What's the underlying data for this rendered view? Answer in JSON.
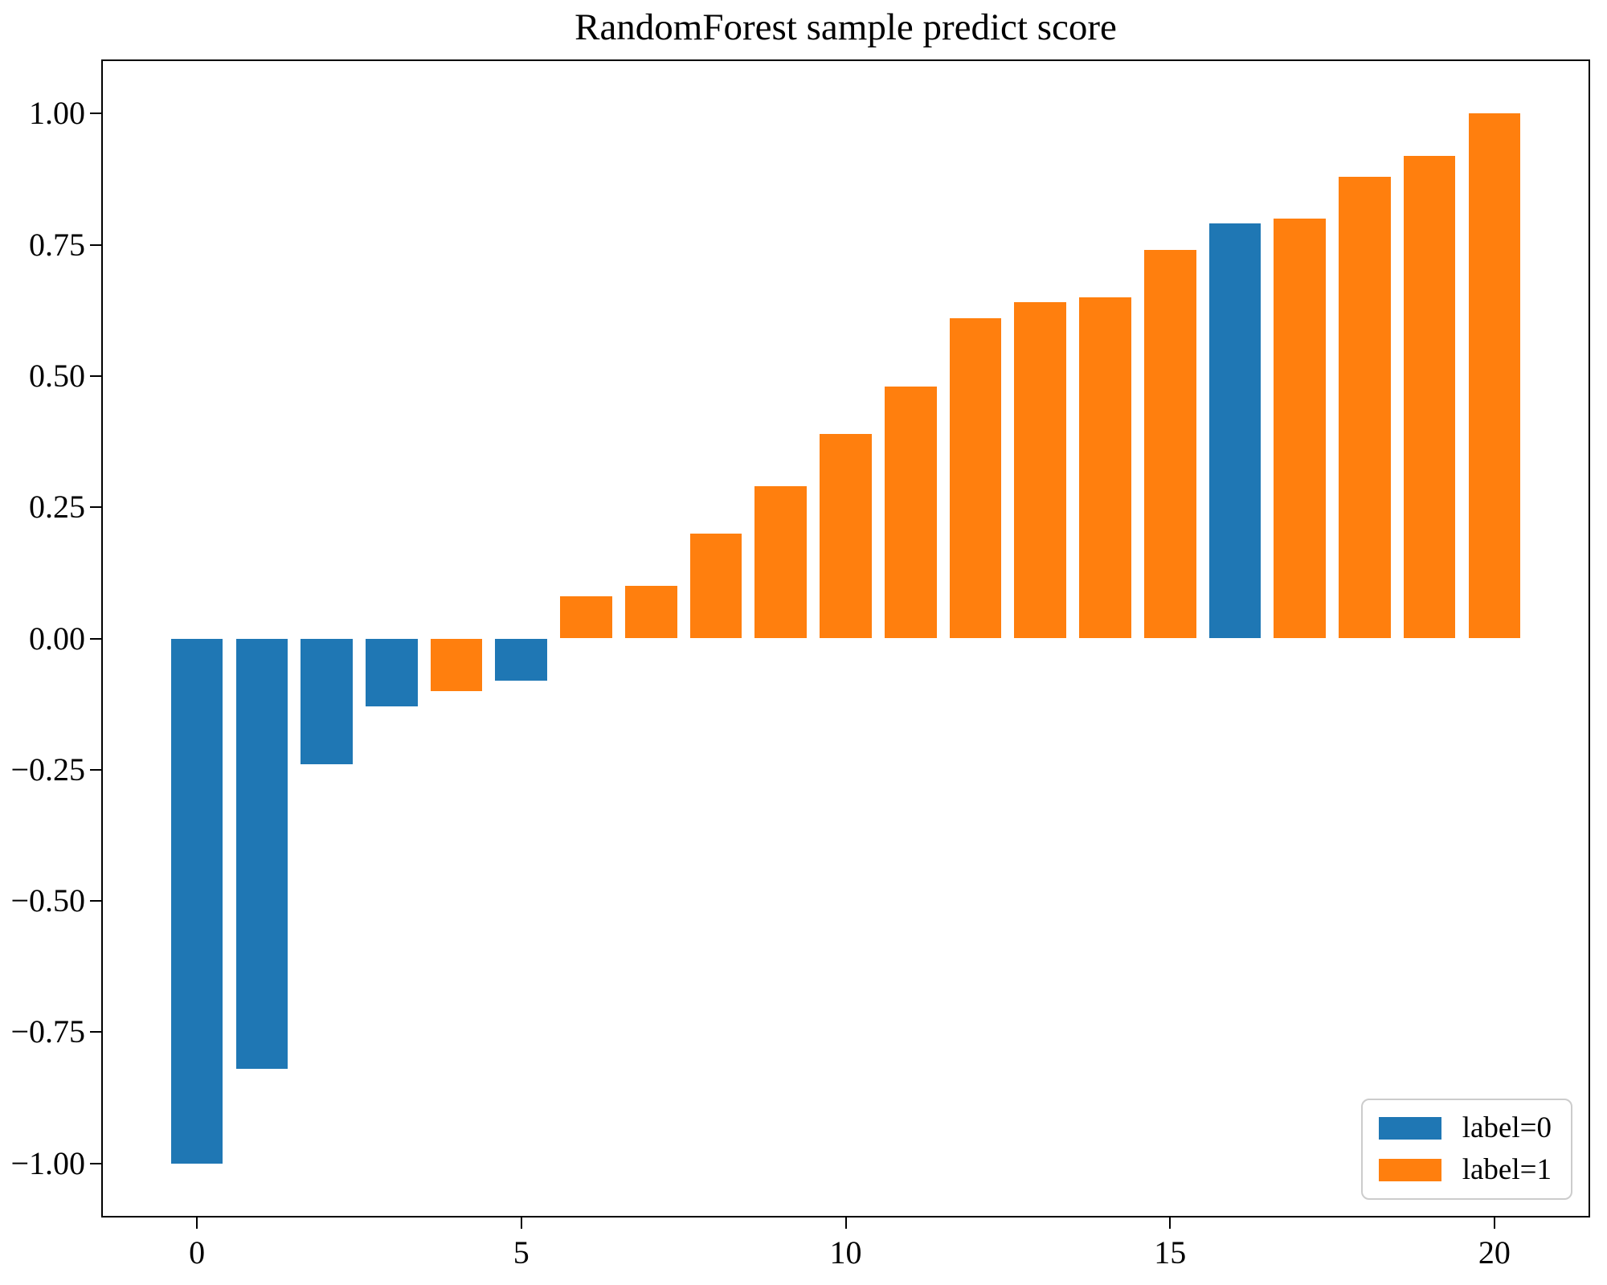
{
  "chart_data": {
    "type": "bar",
    "title": "RandomForest sample predict score",
    "xlabel": "",
    "ylabel": "",
    "grid": false,
    "xlim": [
      -1.45,
      21.45
    ],
    "ylim": [
      -1.1,
      1.1
    ],
    "bar_width": 0.8,
    "colors": {
      "label0": "#1f77b4",
      "label1": "#ff7f0e",
      "spine": "#000000",
      "background": "#ffffff",
      "legend_border": "#cccccc"
    },
    "bars": [
      {
        "x": 0,
        "value": -1.0,
        "label": 0
      },
      {
        "x": 1,
        "value": -0.82,
        "label": 0
      },
      {
        "x": 2,
        "value": -0.24,
        "label": 0
      },
      {
        "x": 3,
        "value": -0.13,
        "label": 0
      },
      {
        "x": 4,
        "value": -0.1,
        "label": 1
      },
      {
        "x": 5,
        "value": -0.08,
        "label": 0
      },
      {
        "x": 6,
        "value": 0.08,
        "label": 1
      },
      {
        "x": 7,
        "value": 0.1,
        "label": 1
      },
      {
        "x": 8,
        "value": 0.2,
        "label": 1
      },
      {
        "x": 9,
        "value": 0.29,
        "label": 1
      },
      {
        "x": 10,
        "value": 0.39,
        "label": 1
      },
      {
        "x": 11,
        "value": 0.48,
        "label": 1
      },
      {
        "x": 12,
        "value": 0.61,
        "label": 1
      },
      {
        "x": 13,
        "value": 0.64,
        "label": 1
      },
      {
        "x": 14,
        "value": 0.65,
        "label": 1
      },
      {
        "x": 15,
        "value": 0.74,
        "label": 1
      },
      {
        "x": 16,
        "value": 0.79,
        "label": 0
      },
      {
        "x": 17,
        "value": 0.8,
        "label": 1
      },
      {
        "x": 18,
        "value": 0.88,
        "label": 1
      },
      {
        "x": 19,
        "value": 0.92,
        "label": 1
      },
      {
        "x": 20,
        "value": 1.0,
        "label": 1
      }
    ],
    "y_axis": {
      "ticks": [
        {
          "value": 1.0,
          "label": "1.00"
        },
        {
          "value": 0.75,
          "label": "0.75"
        },
        {
          "value": 0.5,
          "label": "0.50"
        },
        {
          "value": 0.25,
          "label": "0.25"
        },
        {
          "value": 0.0,
          "label": "0.00"
        },
        {
          "value": -0.25,
          "label": "−0.25"
        },
        {
          "value": -0.5,
          "label": "−0.50"
        },
        {
          "value": -0.75,
          "label": "−0.75"
        },
        {
          "value": -1.0,
          "label": "−1.00"
        }
      ]
    },
    "x_axis": {
      "ticks": [
        {
          "value": 0,
          "label": "0"
        },
        {
          "value": 5,
          "label": "5"
        },
        {
          "value": 10,
          "label": "10"
        },
        {
          "value": 15,
          "label": "15"
        },
        {
          "value": 20,
          "label": "20"
        }
      ]
    },
    "legend": {
      "position": "lower right",
      "entries": [
        {
          "label": "label=0",
          "color_key": "label0"
        },
        {
          "label": "label=1",
          "color_key": "label1"
        }
      ]
    }
  }
}
